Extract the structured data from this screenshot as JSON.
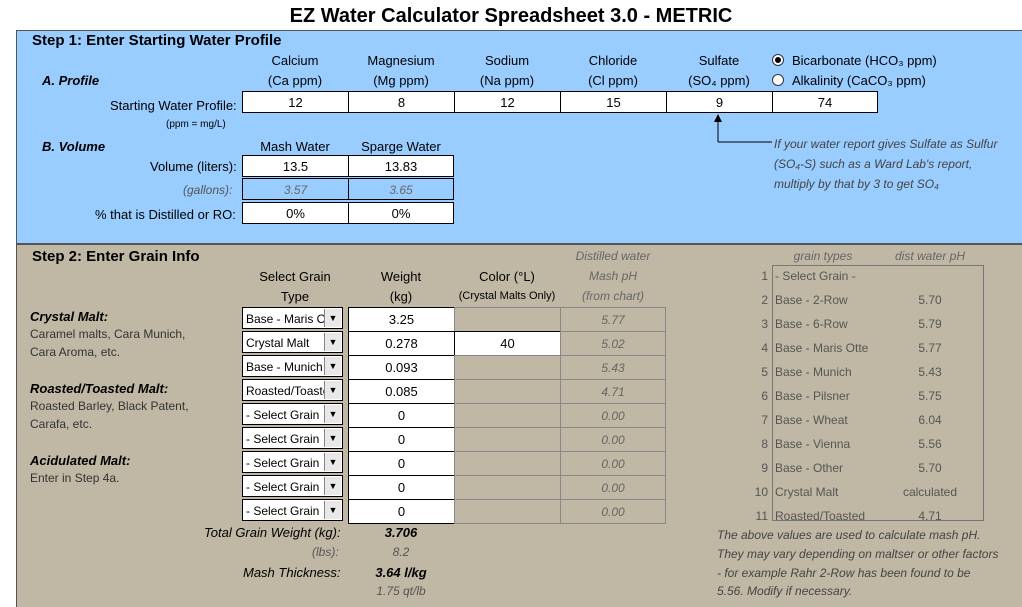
{
  "title": "EZ Water Calculator Spreadsheet 3.0 - METRIC",
  "step1": {
    "title": "Step 1: Enter Starting Water Profile",
    "profile_label": "A. Profile",
    "ions": [
      {
        "name": "Calcium",
        "unit": "(Ca ppm)",
        "value": "12"
      },
      {
        "name": "Magnesium",
        "unit": "(Mg ppm)",
        "value": "8"
      },
      {
        "name": "Sodium",
        "unit": "(Na ppm)",
        "value": "12"
      },
      {
        "name": "Chloride",
        "unit": "(Cl ppm)",
        "value": "15"
      },
      {
        "name": "Sulfate",
        "unit": "(SO₄ ppm)",
        "value": "9"
      }
    ],
    "bicarb_option": "Bicarbonate (HCO₃ ppm)",
    "alk_option": "Alkalinity (CaCO₃ ppm)",
    "bicarb_value": "74",
    "starting_label": "Starting Water Profile:",
    "ppm_note": "(ppm = mg/L)",
    "volume_label": "B. Volume",
    "mash_header": "Mash Water",
    "sparge_header": "Sparge Water",
    "volume_row_label": "Volume (liters):",
    "mash_liters": "13.5",
    "sparge_liters": "13.83",
    "gallons_label": "(gallons):",
    "mash_gallons": "3.57",
    "sparge_gallons": "3.65",
    "distilled_label": "% that is Distilled or RO:",
    "mash_distilled": "0%",
    "sparge_distilled": "0%",
    "sulfur_note_1": "If your water report gives Sulfate as Sulfur",
    "sulfur_note_2": "(SO₄-S) such as a Ward Lab's report,",
    "sulfur_note_3": "multiply by that by 3 to get SO₄"
  },
  "step2": {
    "title": "Step 2: Enter Grain Info",
    "hdr_select": "Select Grain",
    "hdr_type": "Type",
    "hdr_weight": "Weight",
    "hdr_kg": "(kg)",
    "hdr_color": "Color (°L)",
    "hdr_color_note": "(Crystal Malts Only)",
    "hdr_dist": "Distilled water",
    "hdr_mashph": "Mash pH",
    "hdr_chart": "(from chart)",
    "crystal_title": "Crystal Malt:",
    "crystal_desc1": "Caramel malts, Cara Munich,",
    "crystal_desc2": "Cara Aroma, etc.",
    "roasted_title": "Roasted/Toasted Malt:",
    "roasted_desc1": "Roasted Barley, Black Patent,",
    "roasted_desc2": "Carafa, etc.",
    "acid_title": "Acidulated Malt:",
    "acid_desc": "Enter in Step 4a.",
    "grains": [
      {
        "type": "Base - Maris O",
        "weight": "3.25",
        "color": "",
        "ph": "5.77"
      },
      {
        "type": "Crystal Malt",
        "weight": "0.278",
        "color": "40",
        "ph": "5.02"
      },
      {
        "type": "Base - Munich",
        "weight": "0.093",
        "color": "",
        "ph": "5.43"
      },
      {
        "type": "Roasted/Toaste",
        "weight": "0.085",
        "color": "",
        "ph": "4.71"
      },
      {
        "type": "- Select Grain -",
        "weight": "0",
        "color": "",
        "ph": "0.00"
      },
      {
        "type": "- Select Grain -",
        "weight": "0",
        "color": "",
        "ph": "0.00"
      },
      {
        "type": "- Select Grain -",
        "weight": "0",
        "color": "",
        "ph": "0.00"
      },
      {
        "type": "- Select Grain -",
        "weight": "0",
        "color": "",
        "ph": "0.00"
      },
      {
        "type": "- Select Grain -",
        "weight": "0",
        "color": "",
        "ph": "0.00"
      }
    ],
    "total_label": "Total Grain Weight (kg):",
    "total_kg": "3.706",
    "lbs_label": "(lbs):",
    "total_lbs": "8.2",
    "thickness_label": "Mash Thickness:",
    "thickness_metric": "3.64 l/kg",
    "thickness_us": "1.75 qt/lb",
    "ref_hdr_types": "grain types",
    "ref_hdr_ph": "dist water pH",
    "ref_table": [
      {
        "n": "1",
        "name": "- Select Grain -",
        "ph": ""
      },
      {
        "n": "2",
        "name": "Base - 2-Row",
        "ph": "5.70"
      },
      {
        "n": "3",
        "name": "Base - 6-Row",
        "ph": "5.79"
      },
      {
        "n": "4",
        "name": "Base - Maris Otte",
        "ph": "5.77"
      },
      {
        "n": "5",
        "name": "Base - Munich",
        "ph": "5.43"
      },
      {
        "n": "6",
        "name": "Base - Pilsner",
        "ph": "5.75"
      },
      {
        "n": "7",
        "name": "Base - Wheat",
        "ph": "6.04"
      },
      {
        "n": "8",
        "name": "Base - Vienna",
        "ph": "5.56"
      },
      {
        "n": "9",
        "name": "Base - Other",
        "ph": "5.70"
      },
      {
        "n": "10",
        "name": "Crystal Malt",
        "ph": "calculated"
      },
      {
        "n": "11",
        "name": "Roasted/Toasted",
        "ph": "4.71"
      }
    ],
    "note1": "The above values are used to calculate mash pH.",
    "note2": "They may vary depending on maltser or other factors",
    "note3": "- for example Rahr 2-Row has been found to be",
    "note4": "5.56. Modify if necessary."
  }
}
